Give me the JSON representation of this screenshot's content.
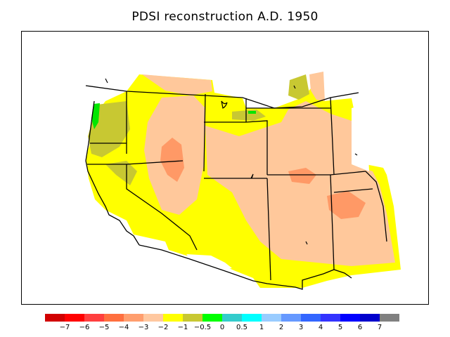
{
  "title": "PDSI reconstruction A.D. 1950",
  "colors": {
    "sea": "#ffffff",
    "no_data": "#ffffff",
    "dry_moderate": "#ffc89b",
    "dry_strong": "#ff9966",
    "near_normal_dry": "#ffff00",
    "olive": "#c8c832",
    "wet_green": "#00e600",
    "boundary": "#000000"
  },
  "legend": {
    "labels": [
      "−7",
      "−6",
      "−5",
      "−4",
      "−3",
      "−2",
      "−1",
      "−0.5",
      "0",
      "0.5",
      "1",
      "2",
      "3",
      "4",
      "5",
      "6",
      "7"
    ],
    "colors": [
      "#d10000",
      "#ff0000",
      "#ff3f3f",
      "#ff6f3f",
      "#ff9e6e",
      "#ffc8a0",
      "#ffff00",
      "#c8c832",
      "#00ff00",
      "#33cccc",
      "#00ffff",
      "#99ccff",
      "#6699ff",
      "#3366ff",
      "#3333ff",
      "#0000ff",
      "#0000cc",
      "#808080"
    ]
  }
}
